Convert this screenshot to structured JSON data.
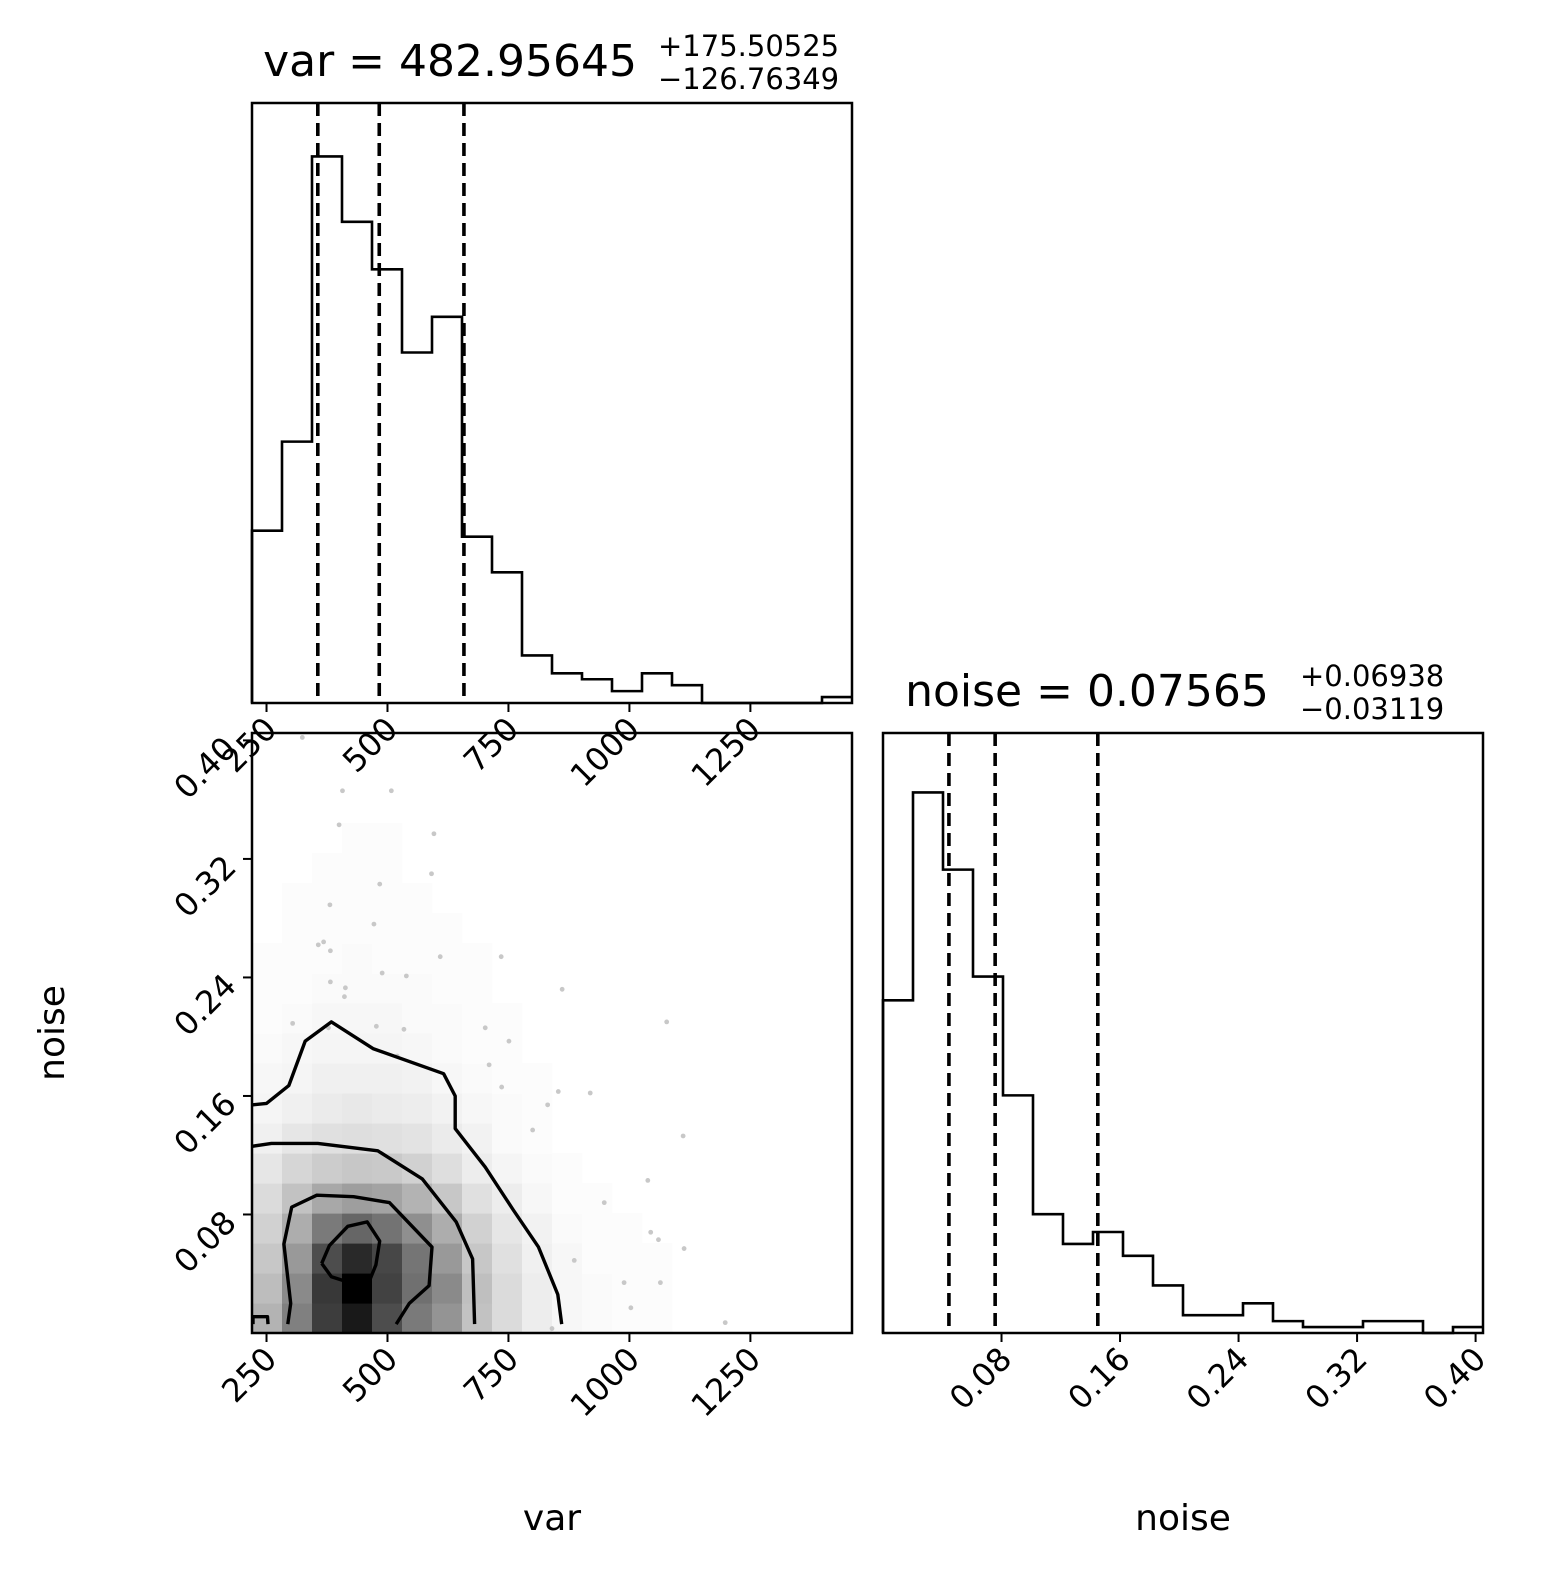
{
  "chart_data": [
    {
      "type": "histogram",
      "panel": "var-marginal",
      "title_main": "var = 482.95645",
      "title_sup": "+175.50525",
      "title_sub": "−126.76349",
      "xlim": [
        220,
        1460
      ],
      "xticks": [
        "250",
        "500",
        "750",
        "1000",
        "1250"
      ],
      "xtick_values": [
        250,
        500,
        750,
        1000,
        1250
      ],
      "bin_edges": [
        220,
        282,
        344,
        406,
        468,
        530,
        592,
        654,
        716,
        778,
        840,
        902,
        964,
        1026,
        1088,
        1150,
        1212,
        1274,
        1336,
        1398,
        1460
      ],
      "counts": [
        29,
        44,
        92,
        81,
        73,
        59,
        65,
        28,
        22,
        8,
        5,
        4,
        2,
        5,
        3,
        0,
        0,
        0,
        0,
        1
      ],
      "ymax": 101,
      "quantile_lines": [
        356,
        483,
        658
      ]
    },
    {
      "type": "histogram",
      "panel": "noise-marginal",
      "title_main": "noise = 0.07565",
      "title_sup": "+0.06938",
      "title_sub": "−0.03119",
      "xlim": [
        0.0,
        0.405
      ],
      "xticks": [
        "0.08",
        "0.16",
        "0.24",
        "0.32",
        "0.40"
      ],
      "xtick_values": [
        0.08,
        0.16,
        0.24,
        0.32,
        0.4
      ],
      "bin_edges": [
        0.0,
        0.02025,
        0.0405,
        0.06075,
        0.081,
        0.10125,
        0.1215,
        0.14175,
        0.162,
        0.18225,
        0.2025,
        0.22275,
        0.243,
        0.26325,
        0.2835,
        0.30375,
        0.324,
        0.34425,
        0.3645,
        0.38475,
        0.405
      ],
      "counts": [
        56,
        91,
        78,
        60,
        40,
        20,
        15,
        17,
        13,
        8,
        3,
        3,
        5,
        2,
        1,
        1,
        2,
        2,
        0,
        1
      ],
      "ymax": 101,
      "quantile_lines": [
        0.0445,
        0.0757,
        0.145
      ]
    },
    {
      "type": "heatmap",
      "panel": "var-noise-2d",
      "xlabel": "var",
      "ylabel": "noise",
      "xlim": [
        220,
        1460
      ],
      "ylim": [
        0.0,
        0.405
      ],
      "xticks": [
        "250",
        "500",
        "750",
        "1000",
        "1250"
      ],
      "xtick_values": [
        250,
        500,
        750,
        1000,
        1250
      ],
      "yticks": [
        "0.08",
        "0.16",
        "0.24",
        "0.32",
        "0.40"
      ],
      "ytick_values": [
        0.08,
        0.16,
        0.24,
        0.32,
        0.4
      ],
      "grid": {
        "nx": 20,
        "ny": 20
      },
      "density": [
        [
          0.3,
          0.5,
          0.76,
          0.9,
          0.7,
          0.52,
          0.42,
          0.24,
          0.14,
          0.07,
          0.03,
          0.02,
          0.01,
          0.01,
          0,
          0,
          0,
          0,
          0,
          0
        ],
        [
          0.26,
          0.46,
          0.78,
          1.0,
          0.74,
          0.56,
          0.46,
          0.25,
          0.14,
          0.07,
          0.03,
          0.02,
          0.01,
          0.01,
          0,
          0,
          0,
          0,
          0,
          0
        ],
        [
          0.22,
          0.4,
          0.7,
          0.84,
          0.72,
          0.54,
          0.4,
          0.22,
          0.12,
          0.06,
          0.03,
          0.01,
          0.01,
          0.01,
          0,
          0,
          0,
          0,
          0,
          0
        ],
        [
          0.18,
          0.32,
          0.52,
          0.6,
          0.55,
          0.44,
          0.32,
          0.18,
          0.1,
          0.05,
          0.02,
          0.01,
          0.01,
          0,
          0,
          0,
          0,
          0,
          0,
          0
        ],
        [
          0.14,
          0.24,
          0.34,
          0.38,
          0.36,
          0.3,
          0.22,
          0.12,
          0.07,
          0.03,
          0.01,
          0.01,
          0,
          0,
          0,
          0,
          0,
          0,
          0,
          0
        ],
        [
          0.1,
          0.16,
          0.2,
          0.22,
          0.21,
          0.18,
          0.13,
          0.07,
          0.04,
          0.02,
          0.01,
          0,
          0,
          0,
          0,
          0,
          0,
          0,
          0,
          0
        ],
        [
          0.06,
          0.1,
          0.12,
          0.13,
          0.12,
          0.11,
          0.08,
          0.05,
          0.02,
          0.01,
          0,
          0,
          0,
          0,
          0,
          0,
          0,
          0,
          0,
          0
        ],
        [
          0.04,
          0.06,
          0.08,
          0.09,
          0.08,
          0.07,
          0.05,
          0.03,
          0.02,
          0.01,
          0,
          0,
          0,
          0,
          0,
          0,
          0,
          0,
          0,
          0
        ],
        [
          0.03,
          0.04,
          0.06,
          0.06,
          0.06,
          0.05,
          0.03,
          0.02,
          0.01,
          0.01,
          0,
          0,
          0,
          0,
          0,
          0,
          0,
          0,
          0,
          0
        ],
        [
          0.02,
          0.03,
          0.04,
          0.04,
          0.04,
          0.03,
          0.02,
          0.01,
          0.01,
          0,
          0,
          0,
          0,
          0,
          0,
          0,
          0,
          0,
          0,
          0
        ],
        [
          0.01,
          0.02,
          0.03,
          0.03,
          0.03,
          0.02,
          0.02,
          0.01,
          0.01,
          0,
          0,
          0,
          0,
          0,
          0,
          0,
          0,
          0,
          0,
          0
        ],
        [
          0.01,
          0.01,
          0.02,
          0.02,
          0.02,
          0.02,
          0.01,
          0.01,
          0,
          0,
          0,
          0,
          0,
          0,
          0,
          0,
          0,
          0,
          0,
          0
        ],
        [
          0.01,
          0.01,
          0.01,
          0.02,
          0.01,
          0.01,
          0.01,
          0.01,
          0,
          0,
          0,
          0,
          0,
          0,
          0,
          0,
          0,
          0,
          0,
          0
        ],
        [
          0,
          0.01,
          0.01,
          0.01,
          0.01,
          0.01,
          0.01,
          0,
          0,
          0,
          0,
          0,
          0,
          0,
          0,
          0,
          0,
          0,
          0,
          0
        ],
        [
          0,
          0.01,
          0.01,
          0.01,
          0.01,
          0.01,
          0,
          0,
          0,
          0,
          0,
          0,
          0,
          0,
          0,
          0,
          0,
          0,
          0,
          0
        ],
        [
          0,
          0,
          0.01,
          0.01,
          0.01,
          0,
          0,
          0,
          0,
          0,
          0,
          0,
          0,
          0,
          0,
          0,
          0,
          0,
          0,
          0
        ],
        [
          0,
          0,
          0,
          0.01,
          0.01,
          0,
          0,
          0,
          0,
          0,
          0,
          0,
          0,
          0,
          0,
          0,
          0,
          0,
          0,
          0
        ],
        [
          0,
          0,
          0,
          0,
          0,
          0,
          0,
          0,
          0,
          0,
          0,
          0,
          0,
          0,
          0,
          0,
          0,
          0,
          0,
          0
        ],
        [
          0,
          0,
          0,
          0,
          0,
          0,
          0,
          0,
          0,
          0,
          0,
          0,
          0,
          0,
          0,
          0,
          0,
          0,
          0,
          0
        ],
        [
          0,
          0,
          0,
          0,
          0,
          0,
          0,
          0,
          0,
          0,
          0,
          0,
          0,
          0,
          0,
          0,
          0,
          0,
          0,
          0
        ]
      ],
      "contours": [
        {
          "level": "inner",
          "points": [
            [
              364,
              0.047
            ],
            [
              380,
              0.059
            ],
            [
              418,
              0.072
            ],
            [
              458,
              0.075
            ],
            [
              484,
              0.062
            ],
            [
              476,
              0.046
            ],
            [
              450,
              0.025
            ],
            [
              422,
              0.034
            ],
            [
              384,
              0.038
            ],
            [
              364,
              0.047
            ]
          ]
        },
        {
          "level": "middle",
          "points": [
            [
              294,
              0.006
            ],
            [
              300,
              0.02
            ],
            [
              286,
              0.06
            ],
            [
              302,
              0.085
            ],
            [
              354,
              0.093
            ],
            [
              430,
              0.092
            ],
            [
              504,
              0.088
            ],
            [
              592,
              0.058
            ],
            [
              586,
              0.032
            ],
            [
              545,
              0.02
            ],
            [
              518,
              0.006
            ]
          ]
        },
        {
          "level": "outer",
          "points": [
            [
              220,
              0.126
            ],
            [
              260,
              0.128
            ],
            [
              356,
              0.128
            ],
            [
              480,
              0.123
            ],
            [
              572,
              0.104
            ],
            [
              642,
              0.075
            ],
            [
              676,
              0.05
            ],
            [
              680,
              0.006
            ]
          ]
        },
        {
          "level": "outermost",
          "points": [
            [
              220,
              0.154
            ],
            [
              250,
              0.155
            ],
            [
              296,
              0.167
            ],
            [
              330,
              0.197
            ],
            [
              384,
              0.21
            ],
            [
              470,
              0.192
            ],
            [
              616,
              0.175
            ],
            [
              640,
              0.16
            ],
            [
              640,
              0.138
            ],
            [
              702,
              0.112
            ],
            [
              760,
              0.083
            ],
            [
              812,
              0.058
            ],
            [
              852,
              0.026
            ],
            [
              860,
              0.006
            ]
          ]
        },
        {
          "level": "edge",
          "points": [
            [
              222,
              0.006
            ],
            [
              222,
              0.011
            ],
            [
              252,
              0.011
            ],
            [
              253,
              0.006
            ]
          ]
        }
      ],
      "scatter": [
        [
          324,
          0.402
        ],
        [
          407,
          0.366
        ],
        [
          508,
          0.366
        ],
        [
          400,
          0.343
        ],
        [
          596,
          0.337
        ],
        [
          591,
          0.31
        ],
        [
          484,
          0.303
        ],
        [
          381,
          0.289
        ],
        [
          472,
          0.276
        ],
        [
          368,
          0.264
        ],
        [
          357,
          0.262
        ],
        [
          382,
          0.258
        ],
        [
          609,
          0.254
        ],
        [
          735,
          0.254
        ],
        [
          489,
          0.243
        ],
        [
          539,
          0.241
        ],
        [
          382,
          0.237
        ],
        [
          413,
          0.233
        ],
        [
          861,
          0.232
        ],
        [
          411,
          0.227
        ],
        [
          304,
          0.209
        ],
        [
          378,
          0.206
        ],
        [
          477,
          0.207
        ],
        [
          534,
          0.205
        ],
        [
          702,
          0.206
        ],
        [
          1077,
          0.21
        ],
        [
          751,
          0.197
        ],
        [
          520,
          0.187
        ],
        [
          710,
          0.181
        ],
        [
          736,
          0.166
        ],
        [
          853,
          0.163
        ],
        [
          919,
          0.162
        ],
        [
          831,
          0.154
        ],
        [
          1111,
          0.133
        ],
        [
          800,
          0.137
        ],
        [
          1038,
          0.103
        ],
        [
          948,
          0.088
        ],
        [
          1044,
          0.068
        ],
        [
          1060,
          0.063
        ],
        [
          1113,
          0.057
        ],
        [
          886,
          0.049
        ],
        [
          989,
          0.034
        ],
        [
          1064,
          0.034
        ],
        [
          1003,
          0.017
        ],
        [
          1198,
          0.007
        ],
        [
          840,
          0.003
        ]
      ]
    }
  ]
}
